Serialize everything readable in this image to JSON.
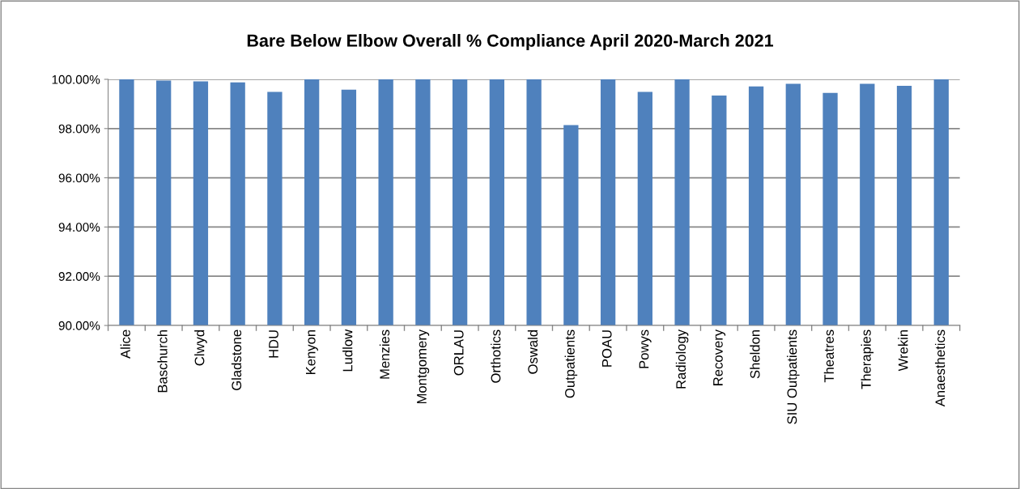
{
  "chart_data": {
    "type": "bar",
    "title": "Bare Below Elbow Overall % Compliance April 2020-March 2021",
    "categories": [
      "Alice",
      "Baschurch",
      "Clwyd",
      "Gladstone",
      "HDU",
      "Kenyon",
      "Ludlow",
      "Menzies",
      "Montgomery",
      "ORLAU",
      "Orthotics",
      "Oswald",
      "Outpatients",
      "POAU",
      "Powys",
      "Radiology",
      "Recovery",
      "Sheldon",
      "SIU Outpatients",
      "Theatres",
      "Therapies",
      "Wrekin",
      "Anaesthetics"
    ],
    "values": [
      100,
      99.95,
      99.92,
      99.88,
      99.49,
      100,
      99.58,
      100,
      100,
      100,
      100,
      100,
      98.14,
      100,
      99.49,
      100,
      99.34,
      99.71,
      99.82,
      99.45,
      99.82,
      99.74,
      100
    ],
    "color": "#4f81bd",
    "ylim": [
      90,
      100
    ],
    "yticks": [
      {
        "value": 90,
        "label": "90.00%"
      },
      {
        "value": 92,
        "label": "92.00%"
      },
      {
        "value": 94,
        "label": "94.00%"
      },
      {
        "value": 96,
        "label": "96.00%"
      },
      {
        "value": 98,
        "label": "98.00%"
      },
      {
        "value": 100,
        "label": "100.00%"
      }
    ],
    "grid": "y",
    "legend": false
  }
}
